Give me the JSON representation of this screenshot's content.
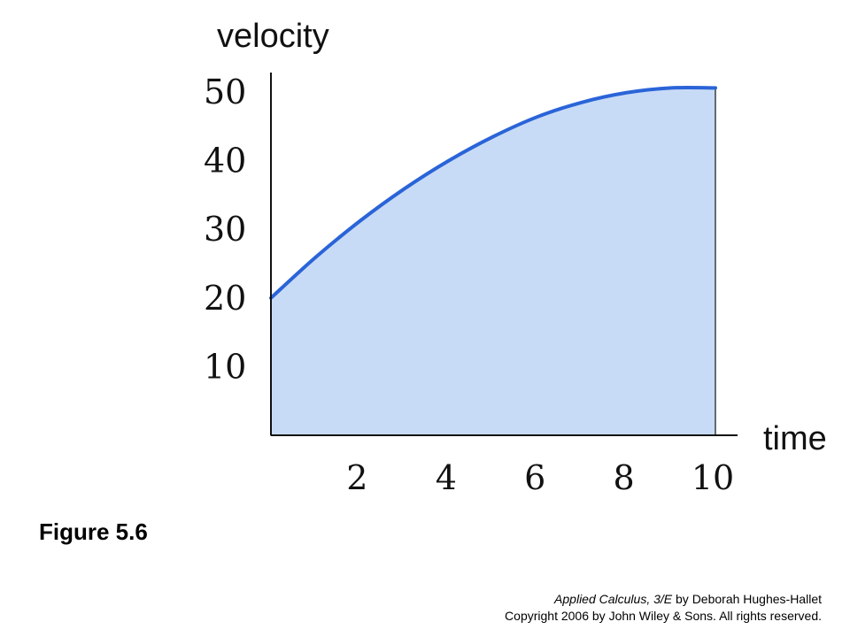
{
  "chart_data": {
    "type": "area",
    "xlabel": "time",
    "ylabel": "velocity",
    "xlim": [
      0,
      10
    ],
    "ylim": [
      0,
      50
    ],
    "x_ticks": [
      2,
      4,
      6,
      8,
      10
    ],
    "y_ticks": [
      10,
      20,
      30,
      40,
      50
    ],
    "grid": false,
    "series": [
      {
        "x": [
          0,
          1,
          2,
          3,
          4,
          5,
          6,
          7,
          8,
          9,
          10
        ],
        "y": [
          20,
          25.9,
          31.2,
          35.9,
          40,
          43.5,
          46.4,
          48.5,
          49.9,
          50.6,
          50.6
        ]
      }
    ]
  },
  "figure_label": "Figure 5.6",
  "credits": {
    "book_title": "Applied Calculus, 3/E",
    "author": " by Deborah Hughes-Hallet",
    "copyright": "Copyright 2006 by John Wiley & Sons.  All rights reserved."
  },
  "colors": {
    "curve": "#2a64d8",
    "fill": "#c8dbf6",
    "axis": "#111111"
  }
}
